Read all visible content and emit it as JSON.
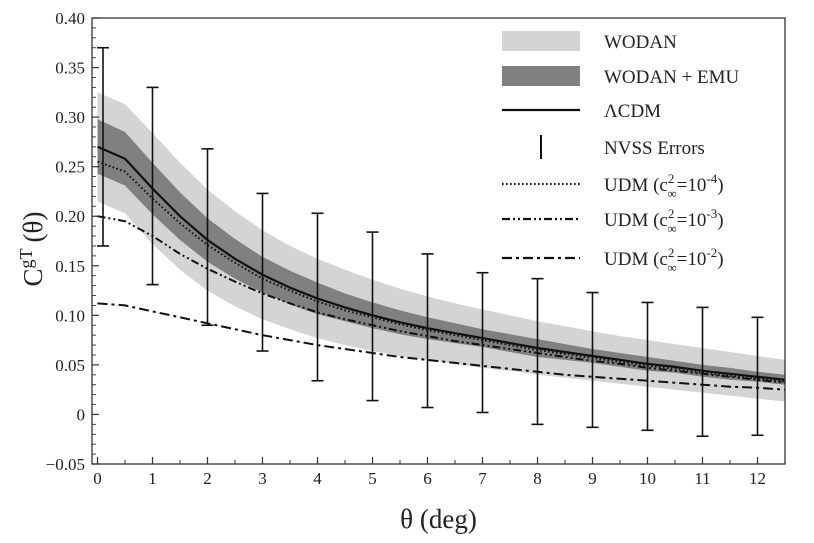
{
  "chart_data": {
    "type": "line",
    "title": "",
    "xlabel": "θ (deg)",
    "ylabel": "C",
    "ylabel_sup": "gT",
    "ylabel_suffix": "(θ)",
    "xlim": [
      -0.1,
      12.5
    ],
    "ylim": [
      -0.05,
      0.4
    ],
    "x_ticks": [
      0,
      1,
      2,
      3,
      4,
      5,
      6,
      7,
      8,
      9,
      10,
      11,
      12
    ],
    "x_tick_labels": [
      "0",
      "1",
      "2",
      "3",
      "4",
      "5",
      "6",
      "7",
      "8",
      "9",
      "10",
      "11",
      "12"
    ],
    "y_ticks": [
      -0.05,
      0,
      0.05,
      0.1,
      0.15,
      0.2,
      0.25,
      0.3,
      0.35,
      0.4
    ],
    "y_tick_labels": [
      "−0.05",
      "0",
      "0.05",
      "0.10",
      "0.15",
      "0.20",
      "0.25",
      "0.30",
      "0.35",
      "0.40"
    ],
    "x": [
      0,
      0.5,
      1,
      1.5,
      2,
      2.5,
      3,
      3.5,
      4,
      4.5,
      5,
      5.5,
      6,
      6.5,
      7,
      7.5,
      8,
      8.5,
      9,
      9.5,
      10,
      10.5,
      11,
      11.5,
      12,
      12.5
    ],
    "series": [
      {
        "name": "ΛCDM",
        "style": "solid",
        "values": [
          0.27,
          0.258,
          0.228,
          0.2,
          0.176,
          0.157,
          0.141,
          0.128,
          0.117,
          0.108,
          0.1,
          0.093,
          0.087,
          0.082,
          0.077,
          0.072,
          0.067,
          0.063,
          0.059,
          0.055,
          0.051,
          0.048,
          0.044,
          0.041,
          0.038,
          0.035
        ]
      },
      {
        "name": "UDM (c∞²=10⁻⁴)",
        "style": "dotted",
        "values": [
          0.255,
          0.245,
          0.218,
          0.193,
          0.171,
          0.153,
          0.137,
          0.125,
          0.114,
          0.105,
          0.098,
          0.091,
          0.085,
          0.08,
          0.075,
          0.07,
          0.065,
          0.061,
          0.057,
          0.053,
          0.049,
          0.046,
          0.042,
          0.039,
          0.036,
          0.033
        ]
      },
      {
        "name": "UDM (c∞²=10⁻³)",
        "style": "dash-dot-dot",
        "values": [
          0.2,
          0.195,
          0.18,
          0.162,
          0.147,
          0.134,
          0.122,
          0.112,
          0.103,
          0.096,
          0.09,
          0.084,
          0.079,
          0.074,
          0.07,
          0.066,
          0.062,
          0.058,
          0.054,
          0.051,
          0.047,
          0.044,
          0.041,
          0.038,
          0.035,
          0.032
        ]
      },
      {
        "name": "UDM (c∞²=10⁻²)",
        "style": "dash-dot",
        "values": [
          0.112,
          0.11,
          0.104,
          0.098,
          0.092,
          0.086,
          0.08,
          0.075,
          0.07,
          0.066,
          0.062,
          0.058,
          0.055,
          0.052,
          0.049,
          0.046,
          0.043,
          0.04,
          0.038,
          0.036,
          0.034,
          0.032,
          0.03,
          0.028,
          0.027,
          0.025
        ]
      }
    ],
    "bands": [
      {
        "name": "WODAN",
        "color": "#d4d4d4",
        "upper": [
          0.325,
          0.313,
          0.284,
          0.254,
          0.227,
          0.205,
          0.186,
          0.17,
          0.157,
          0.146,
          0.136,
          0.127,
          0.119,
          0.112,
          0.106,
          0.1,
          0.094,
          0.089,
          0.084,
          0.079,
          0.075,
          0.071,
          0.067,
          0.063,
          0.059,
          0.055
        ],
        "lower": [
          0.215,
          0.203,
          0.172,
          0.146,
          0.125,
          0.109,
          0.096,
          0.086,
          0.077,
          0.07,
          0.064,
          0.059,
          0.055,
          0.051,
          0.047,
          0.044,
          0.04,
          0.037,
          0.034,
          0.031,
          0.028,
          0.025,
          0.022,
          0.019,
          0.016,
          0.013
        ]
      },
      {
        "name": "WODAN + EMU",
        "color": "#808080",
        "upper": [
          0.298,
          0.285,
          0.254,
          0.224,
          0.198,
          0.177,
          0.159,
          0.145,
          0.133,
          0.122,
          0.113,
          0.105,
          0.098,
          0.092,
          0.086,
          0.081,
          0.076,
          0.071,
          0.066,
          0.062,
          0.058,
          0.054,
          0.05,
          0.047,
          0.043,
          0.04
        ],
        "lower": [
          0.243,
          0.231,
          0.202,
          0.176,
          0.154,
          0.137,
          0.123,
          0.111,
          0.101,
          0.094,
          0.087,
          0.081,
          0.076,
          0.072,
          0.068,
          0.063,
          0.058,
          0.055,
          0.052,
          0.048,
          0.044,
          0.042,
          0.038,
          0.035,
          0.033,
          0.03
        ]
      }
    ],
    "error_bars": {
      "name": "NVSS Errors",
      "x": [
        0.1,
        1,
        2,
        3,
        4,
        5,
        6,
        7,
        8,
        9,
        10,
        11,
        12
      ],
      "lower": [
        0.17,
        0.131,
        0.09,
        0.064,
        0.034,
        0.014,
        0.007,
        0.002,
        -0.01,
        -0.013,
        -0.016,
        -0.022,
        -0.021
      ],
      "upper": [
        0.37,
        0.33,
        0.268,
        0.223,
        0.203,
        0.184,
        0.162,
        0.143,
        0.137,
        0.123,
        0.113,
        0.108,
        0.098
      ]
    },
    "legend": {
      "position": "top-right",
      "items": [
        {
          "label": "WODAN",
          "type": "band",
          "color": "#d4d4d4"
        },
        {
          "label": "WODAN + EMU",
          "type": "band",
          "color": "#808080"
        },
        {
          "label": "ΛCDM",
          "type": "line",
          "style": "solid"
        },
        {
          "label": "NVSS Errors",
          "type": "errorbar"
        },
        {
          "label": "UDM (c∞²=10⁻⁴)",
          "type": "line",
          "style": "dotted"
        },
        {
          "label": "UDM (c∞²=10⁻³)",
          "type": "line",
          "style": "dash-dot-dot"
        },
        {
          "label": "UDM (c∞²=10⁻²)",
          "type": "line",
          "style": "dash-dot"
        }
      ]
    }
  }
}
